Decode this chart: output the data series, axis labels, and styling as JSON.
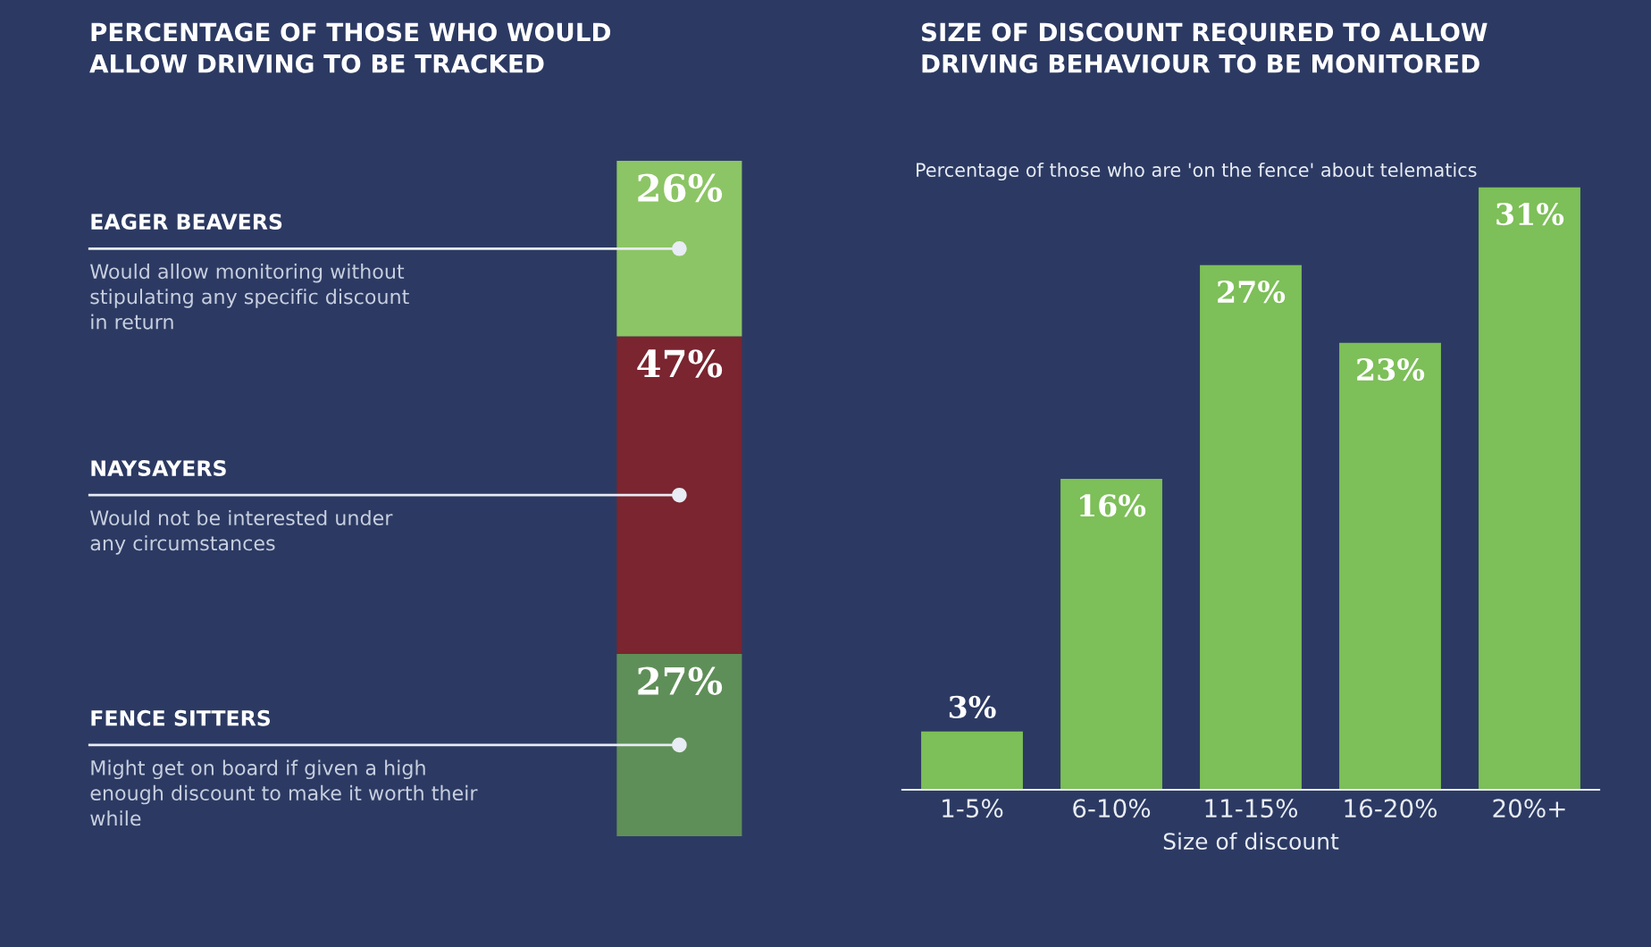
{
  "chart_data": [
    {
      "type": "bar",
      "stacked": true,
      "title": "PERCENTAGE OF THOSE WHO WOULD\nALLOW DRIVING TO BE TRACKED",
      "categories": [
        null
      ],
      "tick_labels": false,
      "series": [
        {
          "name": "FENCE SITTERS",
          "color": "#5f8f58",
          "values": [
            27
          ],
          "value_labels": [
            "27%"
          ]
        },
        {
          "name": "NAYSAYERS",
          "color": "#7a2530",
          "values": [
            47
          ],
          "value_labels": [
            "47%"
          ]
        },
        {
          "name": "EAGER BEAVERS",
          "color": "#8cc565",
          "values": [
            26
          ],
          "value_labels": [
            "26%"
          ]
        }
      ],
      "annotations": [
        "Might get on board if given a high\nenough discount to make it worth their\nwhile",
        "Would not be interested under\nany circumstances",
        "Would allow monitoring without\nstipulating any specific discount\nin return"
      ]
    },
    {
      "type": "bar",
      "title": "SIZE OF DISCOUNT REQUIRED TO ALLOW\nDRIVING BEHAVIOUR TO BE MONITORED",
      "subtitle": "Percentage of those who are 'on the fence' about telematics",
      "xlabel": "Size of discount",
      "categories": [
        "1-5%",
        "6-10%",
        "11-15%",
        "16-20%",
        "20%+"
      ],
      "values": [
        3,
        16,
        27,
        23,
        31
      ],
      "value_labels": [
        "3%",
        "16%",
        "27%",
        "23%",
        "31%"
      ],
      "color": "#7dbf58",
      "tick_labels": "x"
    }
  ]
}
